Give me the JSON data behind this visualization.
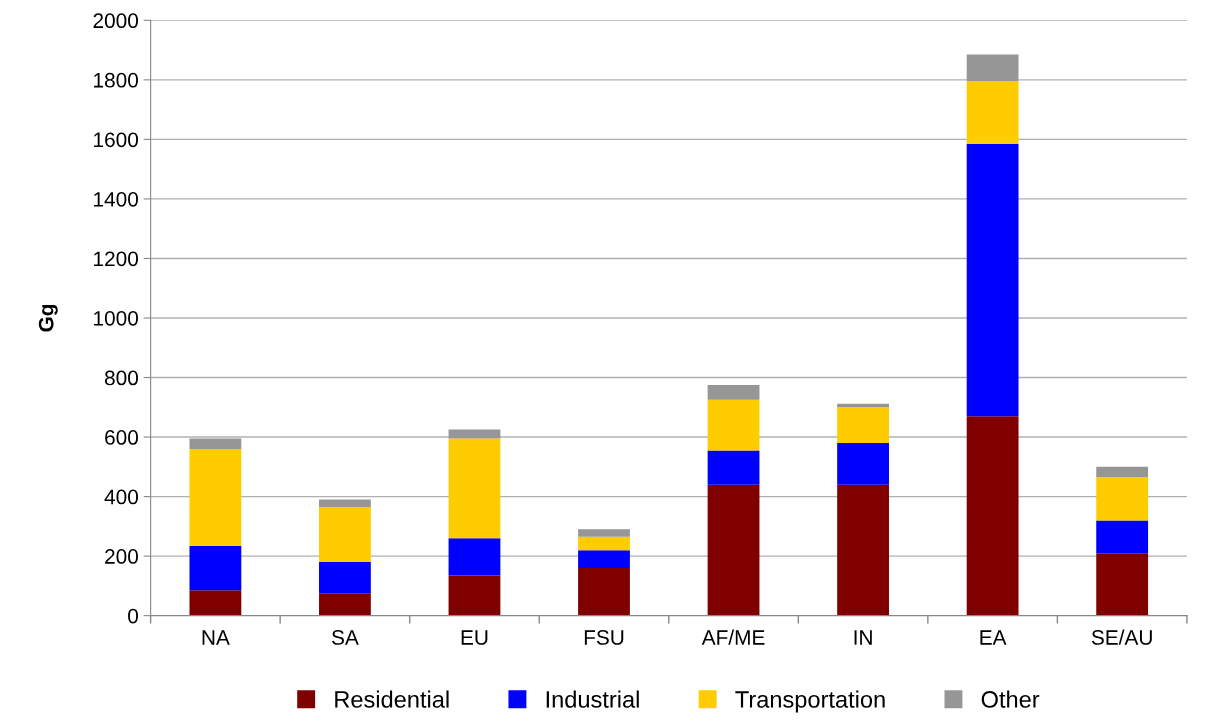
{
  "chart_data": {
    "type": "bar",
    "stacked": true,
    "ylabel": "Gg",
    "categories": [
      "NA",
      "SA",
      "EU",
      "FSU",
      "AF/ME",
      "IN",
      "EA",
      "SE/AU"
    ],
    "series": [
      {
        "name": "Residential",
        "color": "#800000",
        "values": [
          85,
          75,
          135,
          160,
          440,
          440,
          670,
          210
        ]
      },
      {
        "name": "Industrial",
        "color": "#0000ff",
        "values": [
          150,
          105,
          125,
          60,
          115,
          140,
          915,
          110
        ]
      },
      {
        "name": "Transportation",
        "color": "#ffcc00",
        "values": [
          325,
          185,
          335,
          45,
          170,
          120,
          210,
          145
        ]
      },
      {
        "name": "Other",
        "color": "#969696",
        "values": [
          35,
          25,
          30,
          25,
          50,
          12,
          90,
          35
        ]
      }
    ],
    "ylim": [
      0,
      2000
    ],
    "yticks": [
      0,
      200,
      400,
      600,
      800,
      1000,
      1200,
      1400,
      1600,
      1800,
      2000
    ],
    "grid": "y",
    "legend": "bottom"
  }
}
